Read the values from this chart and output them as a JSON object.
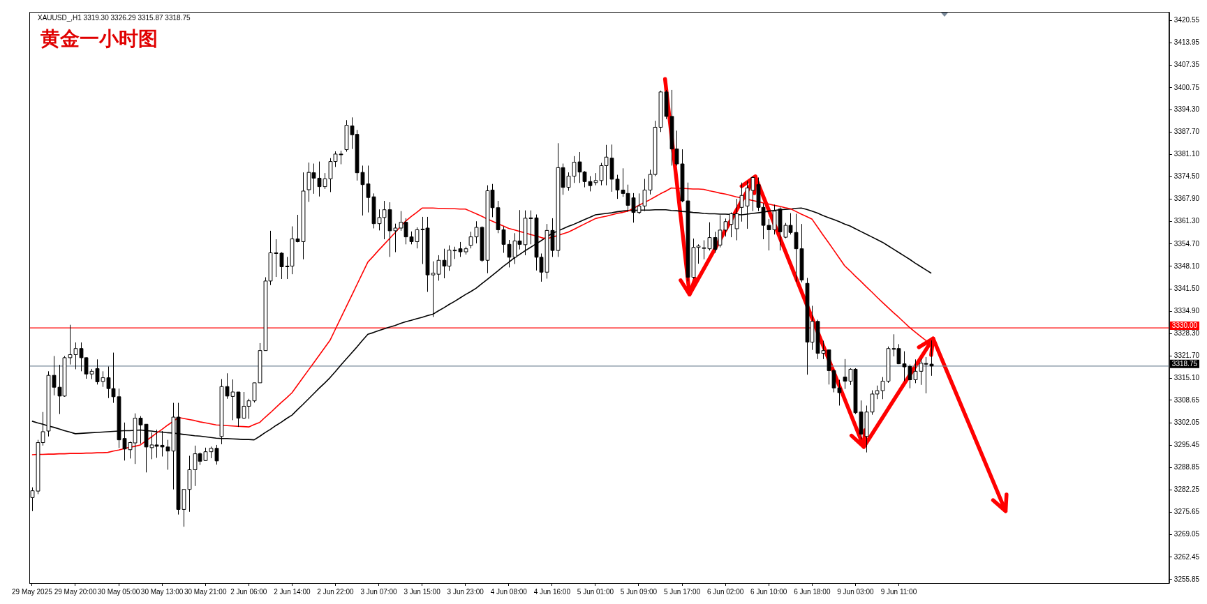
{
  "chart_data": {
    "type": "candlestick",
    "title": "黄金一小时图",
    "subtitle": "XAUUSD_,H1 3319.30 3326.29 3315.87 3318.75",
    "colors": [
      "#ffffff",
      "#ffffff",
      "#ffffff",
      "#ffffff",
      "#000000",
      "#000000",
      "#ffffff",
      "#ffffff",
      "#ffffff",
      "#000000",
      "#000000",
      "#ffffff",
      "#000000",
      "#ffffff",
      "#000000",
      "#000000",
      "#000000",
      "#000000",
      "#ffffff",
      "#ffffff",
      "#000000",
      "#000000",
      "#ffffff",
      "#000000",
      "#000000",
      "#000000",
      "#ffffff",
      "#000000",
      "#ffffff",
      "#ffffff",
      "#ffffff",
      "#000000",
      "#ffffff",
      "#ffffff",
      "#000000",
      "#ffffff",
      "#000000",
      "#ffffff",
      "#000000",
      "#ffffff",
      "#ffffff",
      "#ffffff",
      "#ffffff",
      "#ffffff",
      "#ffffff",
      "#000000",
      "#000000",
      "#000000",
      "#ffffff",
      "#000000",
      "#ffffff",
      "#ffffff",
      "#000000",
      "#000000",
      "#ffffff",
      "#ffffff",
      "#ffffff",
      "#000000",
      "#ffffff",
      "#000000",
      "#000000",
      "#000000",
      "#000000",
      "#000000",
      "#ffffff",
      "#ffffff",
      "#000000",
      "#ffffff",
      "#ffffff",
      "#000000",
      "#000000",
      "#ffffff",
      "#ffffff",
      "#000000",
      "#ffffff",
      "#ffffff",
      "#000000",
      "#ffffff",
      "#ffffff",
      "#000000",
      "#ffffff",
      "#ffffff",
      "#ffffff",
      "#000000",
      "#ffffff",
      "#000000",
      "#000000",
      "#000000",
      "#000000",
      "#ffffff",
      "#000000",
      "#ffffff",
      "#000000",
      "#000000",
      "#000000",
      "#ffffff",
      "#000000",
      "#ffffff",
      "#000000",
      "#ffffff",
      "#ffffff",
      "#000000",
      "#000000",
      "#000000",
      "#ffffff",
      "#ffffff",
      "#ffffff",
      "#000000",
      "#000000",
      "#000000",
      "#000000",
      "#000000",
      "#ffffff",
      "#ffffff",
      "#ffffff",
      "#ffffff",
      "#ffffff",
      "#000000",
      "#000000",
      "#000000",
      "#000000",
      "#000000",
      "#ffffff",
      "#ffffff",
      "#ffffff",
      "#ffffff",
      "#000000",
      "#ffffff",
      "#ffffff",
      "#ffffff",
      "#ffffff",
      "#ffffff",
      "#ffffff",
      "#ffffff",
      "#000000",
      "#000000",
      "#000000",
      "#ffffff",
      "#000000",
      "#ffffff",
      "#000000",
      "#000000",
      "#000000",
      "#000000",
      "#ffffff",
      "#000000",
      "#ffffff",
      "#000000",
      "#000000",
      "#000000",
      "#000000",
      "#ffffff",
      "#000000",
      "#000000",
      "#ffffff",
      "#ffffff",
      "#ffffff",
      "#ffffff",
      "#ffffff",
      "#000000",
      "#000000",
      "#000000",
      "#000000",
      "#ffffff",
      "#ffffff",
      "#000000",
      "#000000"
    ],
    "categories": [
      "29 May 2025",
      null,
      null,
      null,
      null,
      null,
      null,
      null,
      "29 May 20:00",
      null,
      null,
      null,
      null,
      null,
      null,
      null,
      "30 May 05:00",
      null,
      null,
      null,
      null,
      null,
      null,
      null,
      "30 May 13:00",
      null,
      null,
      null,
      null,
      null,
      null,
      null,
      "30 May 21:00",
      null,
      null,
      null,
      null,
      null,
      null,
      null,
      "2 Jun 06:00",
      null,
      null,
      null,
      null,
      null,
      null,
      null,
      "2 Jun 14:00",
      null,
      null,
      null,
      null,
      null,
      null,
      null,
      "2 Jun 22:00",
      null,
      null,
      null,
      null,
      null,
      null,
      null,
      "3 Jun 07:00",
      null,
      null,
      null,
      null,
      null,
      null,
      null,
      "3 Jun 15:00",
      null,
      null,
      null,
      null,
      null,
      null,
      null,
      "3 Jun 23:00",
      null,
      null,
      null,
      null,
      null,
      null,
      null,
      "4 Jun 08:00",
      null,
      null,
      null,
      null,
      null,
      null,
      null,
      "4 Jun 16:00",
      null,
      null,
      null,
      null,
      null,
      null,
      null,
      "5 Jun 01:00",
      null,
      null,
      null,
      null,
      null,
      null,
      null,
      "5 Jun 09:00",
      null,
      null,
      null,
      null,
      null,
      null,
      null,
      "5 Jun 17:00",
      null,
      null,
      null,
      null,
      null,
      null,
      null,
      "6 Jun 02:00",
      null,
      null,
      null,
      null,
      null,
      null,
      null,
      "6 Jun 10:00",
      null,
      null,
      null,
      null,
      null,
      null,
      null,
      "6 Jun 18:00",
      null,
      null,
      null,
      null,
      null,
      null,
      null,
      "9 Jun 03:00",
      null,
      null,
      null,
      null,
      null,
      null,
      null,
      "9 Jun 11:00",
      null,
      null,
      null,
      null,
      null,
      null
    ],
    "ohlc": [
      [
        3280,
        3283,
        3276,
        3282
      ],
      [
        3281.9,
        3297,
        3281,
        3296.2
      ],
      [
        3296.2,
        3305.2,
        3295.3,
        3299.4
      ],
      [
        3299.6,
        3317.2,
        3298.0,
        3316.0
      ],
      [
        3316.0,
        3321.7,
        3310.1,
        3312.5
      ],
      [
        3312.5,
        3319.1,
        3304.6,
        3309.9
      ],
      [
        3309.9,
        3321.7,
        3309.7,
        3321.2
      ],
      [
        3321.2,
        3330.9,
        3319.2,
        3322.1
      ],
      [
        3322.1,
        3325.7,
        3317.8,
        3323.9
      ],
      [
        3323.9,
        3325.7,
        3317.2,
        3321.2
      ],
      [
        3321.2,
        3321.3,
        3315.0,
        3316.4
      ],
      [
        3316.4,
        3317.9,
        3314.9,
        3317.2
      ],
      [
        3318.0,
        3320.7,
        3313.3,
        3314.1
      ],
      [
        3314.2,
        3317.2,
        3312.6,
        3315.3
      ],
      [
        3315.3,
        3318.6,
        3309.3,
        3312.1
      ],
      [
        3312.1,
        3322.7,
        3307.9,
        3309.7
      ],
      [
        3309.7,
        3312.1,
        3294.6,
        3297.0
      ],
      [
        3297.4,
        3302.1,
        3290.9,
        3294.3
      ],
      [
        3294.1,
        3296.5,
        3291.5,
        3296.2
      ],
      [
        3296.1,
        3304.8,
        3289.9,
        3303.4
      ],
      [
        3303.4,
        3304.0,
        3295.9,
        3301.4
      ],
      [
        3301.6,
        3301.6,
        3287.4,
        3294.9
      ],
      [
        3294.7,
        3299.2,
        3291.3,
        3295.5
      ],
      [
        3295.5,
        3300.0,
        3291.7,
        3295.1
      ],
      [
        3295.4,
        3299.6,
        3292.1,
        3294.9
      ],
      [
        3294.9,
        3297.0,
        3288.2,
        3293.7
      ],
      [
        3293.7,
        3307.9,
        3282.4,
        3303.7
      ],
      [
        3303.7,
        3307.9,
        3275.0,
        3276.5
      ],
      [
        3276.5,
        3282.4,
        3271.4,
        3282.4
      ],
      [
        3282.4,
        3292.3,
        3275.8,
        3288.2
      ],
      [
        3288.2,
        3295.3,
        3283.4,
        3292.9
      ],
      [
        3292.9,
        3293.3,
        3289.6,
        3290.7
      ],
      [
        3290.9,
        3294.7,
        3290.8,
        3293.5
      ],
      [
        3293.5,
        3295.0,
        3291.6,
        3294.5
      ],
      [
        3294.5,
        3295.5,
        3289.7,
        3290.8
      ],
      [
        3298.0,
        3314.9,
        3295.7,
        3312.7
      ],
      [
        3312.7,
        3316.6,
        3309.1,
        3309.9
      ],
      [
        3309.8,
        3314.8,
        3302.8,
        3311.1
      ],
      [
        3311.1,
        3311.1,
        3300.8,
        3303.4
      ],
      [
        3303.4,
        3311.1,
        3303.2,
        3306.9
      ],
      [
        3306.9,
        3309.1,
        3303.2,
        3308.5
      ],
      [
        3308.5,
        3313.8,
        3308.0,
        3313.8
      ],
      [
        3313.8,
        3325.5,
        3313.8,
        3323.3
      ],
      [
        3323.3,
        3344.9,
        3323.3,
        3343.8
      ],
      [
        3343.8,
        3358.6,
        3342.6,
        3352.1
      ],
      [
        3352.1,
        3356.1,
        3345.0,
        3352.0
      ],
      [
        3352.0,
        3352.3,
        3344.4,
        3348.0
      ],
      [
        3348.2,
        3350.9,
        3344.4,
        3348.0
      ],
      [
        3348.2,
        3359.9,
        3345.8,
        3356.2
      ],
      [
        3356.2,
        3363.3,
        3355.2,
        3355.4
      ],
      [
        3355.4,
        3375.8,
        3350.2,
        3370.3
      ],
      [
        3370.7,
        3378.7,
        3367.1,
        3375.8
      ],
      [
        3375.7,
        3378.4,
        3369.5,
        3374.1
      ],
      [
        3374.1,
        3379.0,
        3368.7,
        3371.6
      ],
      [
        3371.6,
        3375.6,
        3370.9,
        3373.9
      ],
      [
        3373.9,
        3380.0,
        3370.0,
        3379.0
      ],
      [
        3379.0,
        3382.0,
        3377.4,
        3381.2
      ],
      [
        3381.2,
        3382.2,
        3378.2,
        3381.1
      ],
      [
        3382.5,
        3391.2,
        3381.9,
        3389.7
      ],
      [
        3389.5,
        3392.0,
        3382.7,
        3386.9
      ],
      [
        3387.0,
        3388.3,
        3373.4,
        3375.7
      ],
      [
        3375.8,
        3377.8,
        3363.1,
        3372.2
      ],
      [
        3372.4,
        3377.8,
        3364.0,
        3368.4
      ],
      [
        3368.6,
        3369.6,
        3359.3,
        3360.7
      ],
      [
        3360.7,
        3364.9,
        3358.7,
        3362.5
      ],
      [
        3362.5,
        3367.4,
        3356.1,
        3364.8
      ],
      [
        3364.8,
        3367.0,
        3350.9,
        3358.6
      ],
      [
        3358.6,
        3360.7,
        3352.3,
        3359.4
      ],
      [
        3359.4,
        3364.4,
        3358.6,
        3361.1
      ],
      [
        3361.1,
        3362.3,
        3354.6,
        3356.8
      ],
      [
        3356.8,
        3358.4,
        3354.6,
        3355.4
      ],
      [
        3355.4,
        3359.6,
        3353.4,
        3358.9
      ],
      [
        3359.0,
        3362.7,
        3348.8,
        3359.1
      ],
      [
        3359.4,
        3362.7,
        3340.6,
        3345.6
      ],
      [
        3345.6,
        3349.6,
        3333.2,
        3346.1
      ],
      [
        3345.8,
        3351.4,
        3343.9,
        3349.9
      ],
      [
        3349.9,
        3353.3,
        3344.6,
        3348.2
      ],
      [
        3348.2,
        3354.3,
        3346.8,
        3352.9
      ],
      [
        3352.8,
        3353.9,
        3350.3,
        3352.9
      ],
      [
        3353.3,
        3355.3,
        3350.9,
        3352.4
      ],
      [
        3352.4,
        3353.9,
        3351.6,
        3353.3
      ],
      [
        3354.3,
        3358.3,
        3353.4,
        3356.8
      ],
      [
        3356.8,
        3361.4,
        3354.9,
        3359.6
      ],
      [
        3359.6,
        3359.9,
        3349.4,
        3349.9
      ],
      [
        3349.9,
        3372.0,
        3346.1,
        3370.4
      ],
      [
        3370.6,
        3372.4,
        3362.6,
        3365.4
      ],
      [
        3365.4,
        3367.4,
        3357.9,
        3358.9
      ],
      [
        3358.9,
        3359.9,
        3352.1,
        3354.6
      ],
      [
        3354.6,
        3355.9,
        3347.8,
        3350.8
      ],
      [
        3350.8,
        3357.9,
        3348.8,
        3355.6
      ],
      [
        3355.6,
        3364.7,
        3353.1,
        3354.6
      ],
      [
        3354.5,
        3364.6,
        3351.4,
        3362.3
      ],
      [
        3362.4,
        3364.6,
        3354.6,
        3362.3
      ],
      [
        3362.4,
        3363.4,
        3346.9,
        3350.8
      ],
      [
        3350.8,
        3351.9,
        3343.6,
        3346.4
      ],
      [
        3346.4,
        3360.6,
        3344.5,
        3358.7
      ],
      [
        3358.7,
        3362.3,
        3350.9,
        3352.8
      ],
      [
        3352.8,
        3384.4,
        3350.9,
        3377.2
      ],
      [
        3377.2,
        3378.4,
        3369.2,
        3371.4
      ],
      [
        3371.4,
        3375.8,
        3370.4,
        3374.7
      ],
      [
        3374.7,
        3380.6,
        3372.7,
        3378.8
      ],
      [
        3378.9,
        3381.8,
        3372.7,
        3375.9
      ],
      [
        3375.9,
        3376.2,
        3371.4,
        3373.1
      ],
      [
        3373.1,
        3374.7,
        3370.2,
        3371.9
      ],
      [
        3372.8,
        3375.6,
        3372.0,
        3373.4
      ],
      [
        3373.4,
        3378.6,
        3372.0,
        3377.8
      ],
      [
        3377.8,
        3383.9,
        3372.0,
        3380.3
      ],
      [
        3380.0,
        3384.0,
        3370.1,
        3373.8
      ],
      [
        3373.8,
        3375.1,
        3368.0,
        3370.6
      ],
      [
        3370.6,
        3377.0,
        3368.6,
        3369.6
      ],
      [
        3369.6,
        3372.2,
        3364.2,
        3366.1
      ],
      [
        3368.3,
        3369.7,
        3361.0,
        3364.0
      ],
      [
        3364.0,
        3369.6,
        3363.5,
        3365.9
      ],
      [
        3365.9,
        3373.9,
        3364.4,
        3370.6
      ],
      [
        3370.6,
        3376.6,
        3369.3,
        3375.2
      ],
      [
        3375.2,
        3391.0,
        3374.7,
        3389.1
      ],
      [
        3389.1,
        3399.9,
        3387.7,
        3399.5
      ],
      [
        3399.5,
        3400.1,
        3391.5,
        3392.3
      ],
      [
        3392.3,
        3400.1,
        3377.8,
        3382.7
      ],
      [
        3382.7,
        3388.1,
        3377.8,
        3378.3
      ],
      [
        3378.3,
        3382.6,
        3367.0,
        3367.4
      ],
      [
        3367.4,
        3372.8,
        3343.7,
        3344.9
      ],
      [
        3344.9,
        3356.3,
        3344.5,
        3353.7
      ],
      [
        3353.7,
        3354.6,
        3348.9,
        3354.1
      ],
      [
        3353.4,
        3355.8,
        3350.2,
        3353.6
      ],
      [
        3353.3,
        3361.1,
        3352.8,
        3356.6
      ],
      [
        3356.6,
        3358.3,
        3352.1,
        3353.1
      ],
      [
        3354.4,
        3363.2,
        3353.7,
        3358.8
      ],
      [
        3358.8,
        3362.2,
        3356.9,
        3361.3
      ],
      [
        3360.5,
        3364.0,
        3356.7,
        3363.6
      ],
      [
        3359.2,
        3368.0,
        3355.8,
        3363.6
      ],
      [
        3365.5,
        3372.8,
        3361.3,
        3369.0
      ],
      [
        3365.9,
        3373.2,
        3359.2,
        3371.2
      ],
      [
        3370.5,
        3374.7,
        3364.4,
        3374.3
      ],
      [
        3372.2,
        3374.3,
        3364.4,
        3365.5
      ],
      [
        3365.5,
        3366.7,
        3356.1,
        3360.2
      ],
      [
        3360.2,
        3362.1,
        3352.8,
        3358.9
      ],
      [
        3358.9,
        3366.3,
        3357.5,
        3364.4
      ],
      [
        3365.0,
        3365.5,
        3352.8,
        3358.3
      ],
      [
        3356.7,
        3360.9,
        3356.4,
        3360.2
      ],
      [
        3360.2,
        3363.8,
        3357.5,
        3358.1
      ],
      [
        3358.1,
        3363.6,
        3343.6,
        3353.3
      ],
      [
        3353.3,
        3360.6,
        3343.4,
        3344.1
      ],
      [
        3343.1,
        3344.7,
        3316.2,
        3325.8
      ],
      [
        3325.8,
        3336.5,
        3323.5,
        3331.9
      ],
      [
        3331.9,
        3332.4,
        3320.8,
        3322.5
      ],
      [
        3322.5,
        3326.2,
        3320.8,
        3323.3
      ],
      [
        3323.5,
        3323.5,
        3313.3,
        3317.4
      ],
      [
        3317.4,
        3317.8,
        3311.0,
        3312.3
      ],
      [
        3312.3,
        3314.7,
        3307.1,
        3310.9
      ],
      [
        3315.5,
        3320.8,
        3312.0,
        3314.3
      ],
      [
        3314.3,
        3318.1,
        3313.2,
        3317.8
      ],
      [
        3317.8,
        3318.1,
        3304.6,
        3305.0
      ],
      [
        3305.2,
        3308.6,
        3297.1,
        3298.7
      ],
      [
        3298.0,
        3307.1,
        3293.3,
        3305.2
      ],
      [
        3305.2,
        3311.6,
        3304.4,
        3310.5
      ],
      [
        3310.5,
        3313.0,
        3309.0,
        3311.5
      ],
      [
        3311.5,
        3315.5,
        3309.0,
        3314.3
      ],
      [
        3314.3,
        3324.5,
        3313.8,
        3323.9
      ],
      [
        3323.9,
        3328.1,
        3321.6,
        3323.8
      ],
      [
        3323.9,
        3325.2,
        3319.3,
        3319.4
      ],
      [
        3319.4,
        3323.1,
        3314.3,
        3318.5
      ],
      [
        3318.6,
        3319.2,
        3312.2,
        3314.7
      ],
      [
        3314.7,
        3320.7,
        3313.7,
        3317.2
      ],
      [
        3317.2,
        3320.9,
        3313.2,
        3319.6
      ],
      [
        3319.5,
        3321.4,
        3310.7,
        3319.4
      ],
      [
        3319.3,
        3326.29,
        3315.87,
        3318.75
      ]
    ],
    "series": [
      {
        "type": "line",
        "color": "#ff0000",
        "values": [
          3292.6,
          3292.7,
          3292.7,
          3292.8,
          3292.8,
          3292.9,
          3292.9,
          3293.0,
          3293.0,
          3293.0,
          3293.1,
          3293.1,
          3293.2,
          3293.2,
          3293.3,
          3293.7,
          3294.0,
          3294.4,
          3294.8,
          3295.1,
          3295.5,
          3296.7,
          3297.8,
          3299.0,
          3300.1,
          3301.3,
          3302.4,
          3303.6,
          3303.3,
          3303.0,
          3302.7,
          3302.3,
          3302.0,
          3301.7,
          3301.4,
          3301.3,
          3301.2,
          3301.1,
          3301.0,
          3300.9,
          3300.8,
          3301.5,
          3302.1,
          3303.6,
          3305.0,
          3306.5,
          3308.0,
          3309.4,
          3310.9,
          3313.1,
          3315.3,
          3317.5,
          3319.7,
          3321.9,
          3324.1,
          3326.3,
          3329.6,
          3332.9,
          3336.2,
          3339.5,
          3342.8,
          3346.1,
          3349.4,
          3351.1,
          3352.9,
          3354.6,
          3356.3,
          3358.0,
          3359.8,
          3361.5,
          3362.8,
          3364.0,
          3365.3,
          3365.3,
          3365.3,
          3365.2,
          3365.2,
          3365.1,
          3365.1,
          3365.0,
          3365.0,
          3364.3,
          3363.6,
          3362.9,
          3362.1,
          3361.4,
          3360.7,
          3360.0,
          3359.3,
          3358.9,
          3358.4,
          3358.0,
          3357.5,
          3357.1,
          3356.6,
          3356.2,
          3356.7,
          3357.2,
          3357.7,
          3358.2,
          3359.0,
          3359.8,
          3360.6,
          3361.4,
          3362.2,
          3362.6,
          3362.9,
          3363.3,
          3363.7,
          3364.0,
          3364.4,
          3365.2,
          3366.1,
          3366.9,
          3367.7,
          3368.6,
          3369.5,
          3370.3,
          3371.2,
          3371.1,
          3371.1,
          3371.0,
          3370.9,
          3370.9,
          3370.8,
          3370.4,
          3370.1,
          3369.7,
          3369.4,
          3369.0,
          3368.6,
          3368.3,
          3367.9,
          3367.5,
          3367.2,
          3366.8,
          3366.5,
          3366.1,
          3365.8,
          3365.4,
          3365.1,
          3364.3,
          3363.5,
          3362.8,
          3362.0,
          3359.7,
          3357.4,
          3355.2,
          3352.9,
          3350.6,
          3348.3,
          3346.8,
          3345.2,
          3343.7,
          3342.1,
          3340.6,
          3339.0,
          3337.5,
          3336.0,
          3334.5,
          3333.1,
          3331.6,
          3330.1,
          3328.8,
          3327.5,
          3326.3,
          3325.0
        ]
      },
      {
        "type": "line",
        "color": "#000000",
        "values": [
          3302.5,
          3302.0,
          3301.6,
          3301.1,
          3300.7,
          3300.2,
          3299.7,
          3299.3,
          3298.8,
          3298.9,
          3299.0,
          3299.1,
          3299.2,
          3299.3,
          3299.4,
          3299.5,
          3299.6,
          3299.7,
          3299.7,
          3299.8,
          3299.9,
          3299.7,
          3299.6,
          3299.4,
          3299.3,
          3299.1,
          3299.0,
          3298.8,
          3298.6,
          3298.4,
          3298.2,
          3298.1,
          3297.9,
          3297.7,
          3297.5,
          3297.4,
          3297.4,
          3297.3,
          3297.2,
          3297.1,
          3297.1,
          3297.0,
          3298.0,
          3299.1,
          3300.1,
          3301.2,
          3302.2,
          3303.3,
          3304.3,
          3305.9,
          3307.4,
          3309.0,
          3310.6,
          3312.2,
          3313.7,
          3315.3,
          3317.1,
          3319.0,
          3320.8,
          3322.6,
          3324.4,
          3326.3,
          3328.1,
          3328.6,
          3329.2,
          3329.7,
          3330.2,
          3330.7,
          3331.3,
          3331.8,
          3332.2,
          3332.7,
          3333.1,
          3333.6,
          3334.0,
          3335.0,
          3335.9,
          3336.9,
          3337.8,
          3338.8,
          3339.8,
          3340.7,
          3341.7,
          3343.0,
          3344.2,
          3345.5,
          3346.8,
          3348.1,
          3349.3,
          3350.6,
          3351.6,
          3352.7,
          3353.7,
          3354.7,
          3355.7,
          3356.8,
          3357.8,
          3358.5,
          3359.2,
          3359.9,
          3360.5,
          3361.2,
          3361.9,
          3362.6,
          3363.3,
          3363.5,
          3363.7,
          3363.9,
          3364.2,
          3364.4,
          3364.6,
          3364.6,
          3364.7,
          3364.7,
          3364.7,
          3364.8,
          3364.8,
          3364.8,
          3364.6,
          3364.5,
          3364.3,
          3364.2,
          3364.0,
          3363.9,
          3363.7,
          3363.6,
          3363.6,
          3363.5,
          3363.5,
          3363.4,
          3363.4,
          3363.3,
          3363.5,
          3363.7,
          3363.9,
          3364.1,
          3364.4,
          3364.6,
          3364.8,
          3364.9,
          3365.0,
          3365.2,
          3365.3,
          3364.9,
          3364.4,
          3363.8,
          3363.1,
          3362.5,
          3361.9,
          3361.3,
          3360.6,
          3360.0,
          3359.2,
          3358.4,
          3357.6,
          3356.8,
          3356.0,
          3355.2,
          3354.2,
          3353.2,
          3352.2,
          3351.2,
          3350.2,
          3349.1,
          3348.1,
          3347.1,
          3346.1
        ]
      }
    ],
    "ylim": [
      3254.8,
      3423.1
    ],
    "yticks": [
      {
        "value": 3420.55,
        "label": "3420.55"
      },
      {
        "value": 3413.95,
        "label": "3413.95"
      },
      {
        "value": 3407.35,
        "label": "3407.35"
      },
      {
        "value": 3400.75,
        "label": "3400.75"
      },
      {
        "value": 3394.3,
        "label": "3394.30"
      },
      {
        "value": 3387.7,
        "label": "3387.70"
      },
      {
        "value": 3381.1,
        "label": "3381.10"
      },
      {
        "value": 3374.5,
        "label": "3374.50"
      },
      {
        "value": 3367.9,
        "label": "3367.90"
      },
      {
        "value": 3361.3,
        "label": "3361.30"
      },
      {
        "value": 3354.7,
        "label": "3354.70"
      },
      {
        "value": 3348.1,
        "label": "3348.10"
      },
      {
        "value": 3341.5,
        "label": "3341.50"
      },
      {
        "value": 3334.9,
        "label": "3334.90"
      },
      {
        "value": 3328.3,
        "label": "3328.30"
      },
      {
        "value": 3321.7,
        "label": "3321.70"
      },
      {
        "value": 3315.1,
        "label": "3315.10"
      },
      {
        "value": 3308.65,
        "label": "3308.65"
      },
      {
        "value": 3302.05,
        "label": "3302.05"
      },
      {
        "value": 3295.45,
        "label": "3295.45"
      },
      {
        "value": 3288.85,
        "label": "3288.85"
      },
      {
        "value": 3282.25,
        "label": "3282.25"
      },
      {
        "value": 3275.65,
        "label": "3275.65"
      },
      {
        "value": 3269.05,
        "label": "3269.05"
      },
      {
        "value": 3262.45,
        "label": "3262.45"
      },
      {
        "value": 3255.85,
        "label": "3255.85"
      }
    ],
    "ref_lines": [
      {
        "axis": "y",
        "value": 3330,
        "label": "3330.00",
        "color": "#ff0000"
      },
      {
        "axis": "y",
        "value": 3318.75,
        "label": "3318.75",
        "color": "#778899"
      }
    ]
  }
}
